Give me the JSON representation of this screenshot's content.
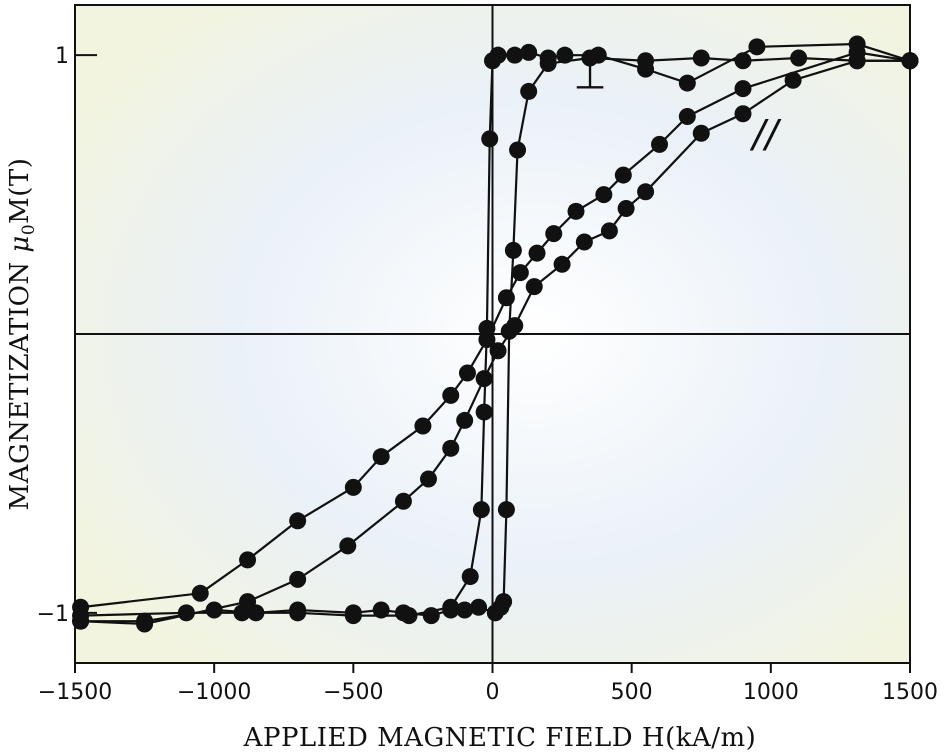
{
  "chart_data": {
    "type": "scatter",
    "xlabel": "APPLIED MAGNETIC FIELD H(kA/m)",
    "ylabel_main": "MAGNETIZATION ",
    "ylabel_mu": "μ",
    "ylabel_sub": "0",
    "ylabel_unit": "M(T)",
    "xlim": [
      -1500,
      1500
    ],
    "ylim": [
      -1.18,
      1.18
    ],
    "x_ticks": [
      -1500,
      -1000,
      -500,
      0,
      500,
      1000,
      1500
    ],
    "x_tick_labels": [
      "−1500",
      "−1000",
      "−500",
      "0",
      "500",
      "1000",
      "1500"
    ],
    "y_ticks": [
      1,
      -1
    ],
    "y_tick_labels": [
      "1",
      "−1"
    ],
    "zero_lines": true,
    "grid": false,
    "annotations": [
      {
        "text": "⊥",
        "x": 350,
        "y": 0.88
      },
      {
        "text": "//",
        "x": 980,
        "y": 0.67
      }
    ],
    "series": [
      {
        "x": [
          1500,
          1310,
          1100,
          900,
          750,
          550,
          350,
          200,
          130,
          90,
          75,
          60,
          50,
          40,
          30,
          10,
          -50,
          -100,
          -150,
          -220,
          -320,
          -400,
          -500,
          -700,
          -850,
          -1000,
          -1250,
          -1480
        ],
        "y": [
          0.98,
          0.98,
          0.99,
          0.98,
          0.99,
          0.98,
          0.99,
          0.97,
          0.87,
          0.66,
          0.3,
          0.01,
          -0.63,
          -0.96,
          -0.98,
          -1.0,
          -0.98,
          -0.99,
          -0.99,
          -1.01,
          -1.0,
          -0.99,
          -1.0,
          -0.99,
          -1.0,
          -0.99,
          -1.03,
          -1.03
        ]
      },
      {
        "x": [
          -1480,
          -1100,
          -900,
          -700,
          -500,
          -300,
          -150,
          -80,
          -40,
          -30,
          -20,
          -10,
          0,
          20,
          80,
          130,
          200,
          260,
          380,
          550,
          700,
          950,
          1310,
          1500
        ],
        "y": [
          -1.01,
          -1.0,
          -1.0,
          -1.0,
          -1.01,
          -1.01,
          -0.98,
          -0.87,
          -0.63,
          -0.28,
          0.02,
          0.7,
          0.98,
          1.0,
          1.0,
          1.01,
          0.99,
          1.0,
          1.0,
          0.95,
          0.9,
          1.03,
          1.04,
          0.98
        ]
      },
      {
        "x": [
          1500,
          1310,
          1080,
          900,
          750,
          550,
          480,
          420,
          330,
          250,
          150,
          80,
          20,
          -30,
          -100,
          -150,
          -230,
          -320,
          -520,
          -700,
          -880,
          -1250,
          -1480
        ],
        "y": [
          0.98,
          0.98,
          0.91,
          0.79,
          0.72,
          0.51,
          0.45,
          0.37,
          0.33,
          0.25,
          0.17,
          0.03,
          -0.06,
          -0.16,
          -0.31,
          -0.41,
          -0.52,
          -0.6,
          -0.76,
          -0.88,
          -0.96,
          -1.04,
          -1.03
        ]
      },
      {
        "x": [
          -1480,
          -1050,
          -880,
          -700,
          -500,
          -400,
          -250,
          -150,
          -90,
          -20,
          50,
          100,
          160,
          220,
          300,
          400,
          470,
          600,
          700,
          900,
          1310,
          1500
        ],
        "y": [
          -0.98,
          -0.93,
          -0.81,
          -0.67,
          -0.55,
          -0.44,
          -0.33,
          -0.22,
          -0.14,
          -0.02,
          0.13,
          0.22,
          0.29,
          0.36,
          0.44,
          0.5,
          0.57,
          0.68,
          0.78,
          0.88,
          1.01,
          0.98
        ]
      }
    ]
  }
}
